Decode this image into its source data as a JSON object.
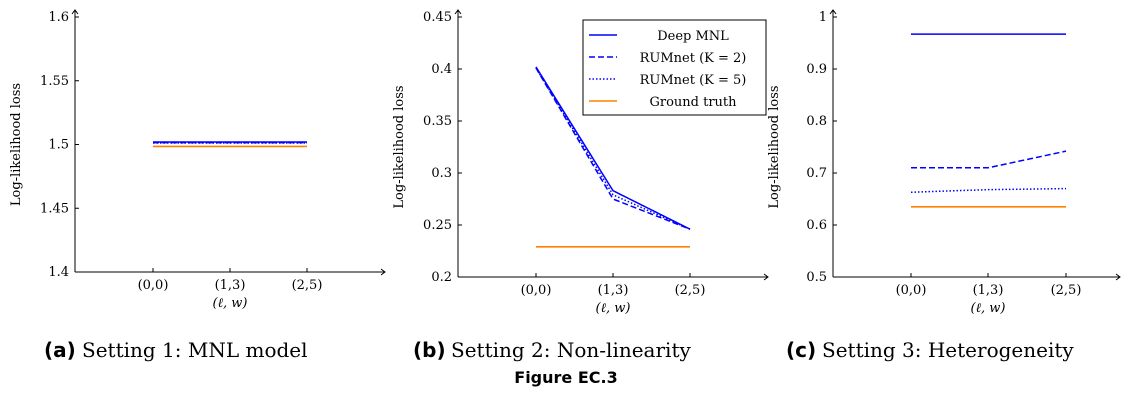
{
  "figure_caption": "Figure EC.3",
  "colors": {
    "blue": "#0000ff",
    "orange": "#ff8000",
    "axis": "#000000"
  },
  "chart_data": [
    {
      "type": "line",
      "label": "(a)",
      "caption": "Setting 1: MNL model",
      "ylabel": "Log-likelihood loss",
      "xlabel": "(ℓ, w)",
      "categories": [
        "(0,0)",
        "(1,3)",
        "(2,5)"
      ],
      "ylim": [
        1.4,
        1.6
      ],
      "yticks": [
        1.4,
        1.45,
        1.5,
        1.55,
        1.6
      ],
      "ytick_labels": [
        "1.4",
        "1.45",
        "1.5",
        "1.55",
        "1.6"
      ],
      "legend": false,
      "series": [
        {
          "name": "Deep MNL",
          "style": "solid",
          "color": "#0000ff",
          "values": [
            1.502,
            1.502,
            1.502
          ]
        },
        {
          "name": "RUMnet (K = 2)",
          "style": "dashed",
          "color": "#0000ff",
          "values": [
            1.5015,
            1.5015,
            1.5015
          ]
        },
        {
          "name": "RUMnet (K = 5)",
          "style": "dotted",
          "color": "#0000ff",
          "values": [
            1.5012,
            1.5012,
            1.5012
          ]
        },
        {
          "name": "Ground truth",
          "style": "solid",
          "color": "#ff8000",
          "values": [
            1.4985,
            1.4985,
            1.4985
          ]
        }
      ]
    },
    {
      "type": "line",
      "label": "(b)",
      "caption": "Setting 2: Non-linearity",
      "ylabel": "Log-likelihood loss",
      "xlabel": "(ℓ, w)",
      "categories": [
        "(0,0)",
        "(1,3)",
        "(2,5)"
      ],
      "ylim": [
        0.2,
        0.45
      ],
      "yticks": [
        0.2,
        0.25,
        0.3,
        0.35,
        0.4,
        0.45
      ],
      "ytick_labels": [
        "0.2",
        "0.25",
        "0.3",
        "0.35",
        "0.4",
        "0.45"
      ],
      "legend": true,
      "legend_position": "top-right",
      "series": [
        {
          "name": "Deep MNL",
          "style": "solid",
          "color": "#0000ff",
          "values": [
            0.402,
            0.283,
            0.246
          ]
        },
        {
          "name": "RUMnet (K = 2)",
          "style": "dashed",
          "color": "#0000ff",
          "values": [
            0.401,
            0.275,
            0.246
          ]
        },
        {
          "name": "RUMnet (K = 5)",
          "style": "dotted",
          "color": "#0000ff",
          "values": [
            0.401,
            0.279,
            0.246
          ]
        },
        {
          "name": "Ground truth",
          "style": "solid",
          "color": "#ff8000",
          "values": [
            0.229,
            0.229,
            0.229
          ]
        }
      ]
    },
    {
      "type": "line",
      "label": "(c)",
      "caption": "Setting 3: Heterogeneity",
      "ylabel": "Log-likelihood loss",
      "xlabel": "(ℓ, w)",
      "categories": [
        "(0,0)",
        "(1,3)",
        "(2,5)"
      ],
      "ylim": [
        0.5,
        1.0
      ],
      "yticks": [
        0.5,
        0.6,
        0.7,
        0.8,
        0.9,
        1.0
      ],
      "ytick_labels": [
        "0.5",
        "0.6",
        "0.7",
        "0.8",
        "0.9",
        "1"
      ],
      "legend": false,
      "series": [
        {
          "name": "Deep MNL",
          "style": "solid",
          "color": "#0000ff",
          "values": [
            0.967,
            0.967,
            0.967
          ]
        },
        {
          "name": "RUMnet (K = 2)",
          "style": "dashed",
          "color": "#0000ff",
          "values": [
            0.71,
            0.71,
            0.742
          ]
        },
        {
          "name": "RUMnet (K = 5)",
          "style": "dotted",
          "color": "#0000ff",
          "values": [
            0.663,
            0.668,
            0.67
          ]
        },
        {
          "name": "Ground truth",
          "style": "solid",
          "color": "#ff8000",
          "values": [
            0.635,
            0.635,
            0.635
          ]
        }
      ]
    }
  ]
}
